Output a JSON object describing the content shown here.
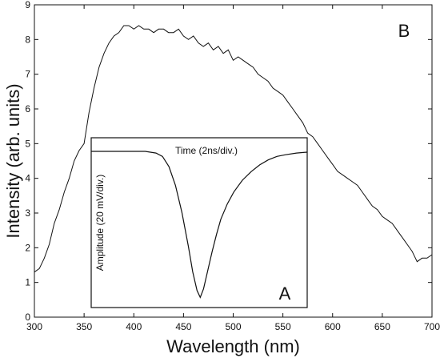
{
  "chart_data": [
    {
      "type": "line",
      "panel_label": "B",
      "xlabel": "Wavelength (nm)",
      "ylabel": "Intensity (arb. units)",
      "xlim": [
        300,
        700
      ],
      "ylim": [
        0,
        9
      ],
      "xticks": [
        "300",
        "350",
        "400",
        "450",
        "500",
        "550",
        "600",
        "650",
        "700"
      ],
      "yticks": [
        "0",
        "1",
        "2",
        "3",
        "4",
        "5",
        "6",
        "7",
        "8",
        "9"
      ],
      "series": [
        {
          "x": [
            300,
            305,
            310,
            315,
            320,
            325,
            330,
            335,
            340,
            345,
            350,
            355,
            360,
            365,
            370,
            375,
            380,
            385,
            390,
            395,
            400,
            405,
            410,
            415,
            420,
            425,
            430,
            435,
            440,
            445,
            450,
            455,
            460,
            465,
            470,
            475,
            480,
            485,
            490,
            495,
            500,
            505,
            510,
            515,
            520,
            525,
            530,
            535,
            540,
            545,
            550,
            555,
            560,
            565,
            570,
            575,
            580,
            585,
            590,
            595,
            600,
            605,
            610,
            615,
            620,
            625,
            630,
            635,
            640,
            645,
            650,
            655,
            660,
            665,
            670,
            675,
            680,
            685,
            690,
            695,
            700
          ],
          "y": [
            1.3,
            1.4,
            1.7,
            2.1,
            2.7,
            3.1,
            3.6,
            4.0,
            4.5,
            4.8,
            5.0,
            5.9,
            6.6,
            7.2,
            7.6,
            7.9,
            8.1,
            8.2,
            8.4,
            8.4,
            8.3,
            8.4,
            8.3,
            8.3,
            8.2,
            8.3,
            8.3,
            8.2,
            8.2,
            8.3,
            8.1,
            8.0,
            8.1,
            7.9,
            7.8,
            7.9,
            7.7,
            7.8,
            7.6,
            7.7,
            7.4,
            7.5,
            7.4,
            7.3,
            7.2,
            7.0,
            6.9,
            6.8,
            6.6,
            6.5,
            6.4,
            6.2,
            6.0,
            5.8,
            5.6,
            5.3,
            5.2,
            5.0,
            4.8,
            4.6,
            4.4,
            4.2,
            4.1,
            4.0,
            3.9,
            3.8,
            3.6,
            3.4,
            3.2,
            3.1,
            2.9,
            2.8,
            2.7,
            2.5,
            2.3,
            2.1,
            1.9,
            1.6,
            1.7,
            1.7,
            1.8
          ]
        }
      ]
    },
    {
      "type": "line",
      "panel_label": "A",
      "xlabel": "Time (2ns/div.)",
      "ylabel": "Amplitude (20 mV/div.)",
      "xlim": [
        0,
        10
      ],
      "ylim": [
        0,
        10
      ],
      "series": [
        {
          "x": [
            0.0,
            0.5,
            1.0,
            1.5,
            2.0,
            2.5,
            3.0,
            3.3,
            3.6,
            3.9,
            4.2,
            4.5,
            4.7,
            4.9,
            5.05,
            5.2,
            5.4,
            5.6,
            5.8,
            6.0,
            6.3,
            6.6,
            7.0,
            7.4,
            7.8,
            8.2,
            8.6,
            9.0,
            9.5,
            10.0
          ],
          "y": [
            9.2,
            9.2,
            9.2,
            9.2,
            9.2,
            9.2,
            9.1,
            8.9,
            8.3,
            7.2,
            5.6,
            3.6,
            2.1,
            1.0,
            0.6,
            1.1,
            2.2,
            3.3,
            4.3,
            5.2,
            6.1,
            6.8,
            7.5,
            8.0,
            8.4,
            8.7,
            8.9,
            9.0,
            9.1,
            9.15
          ]
        }
      ]
    }
  ]
}
